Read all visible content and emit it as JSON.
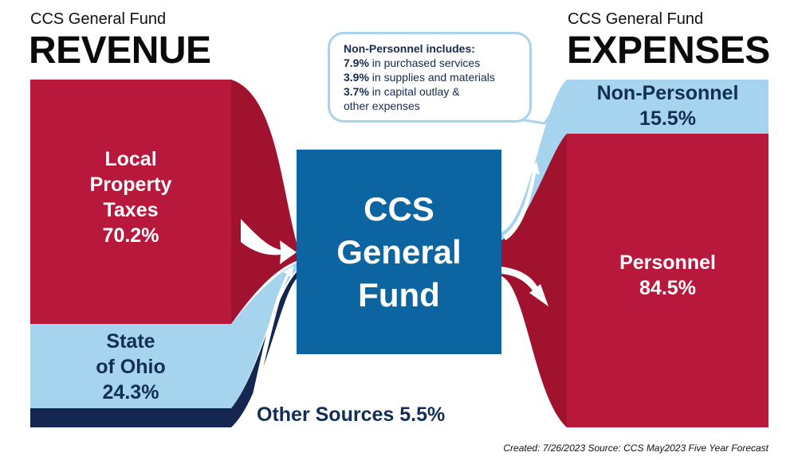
{
  "revenue_header": {
    "small": "CCS General Fund",
    "big": "REVENUE"
  },
  "expenses_header": {
    "small": "CCS General Fund",
    "big": "EXPENSES"
  },
  "revenue": [
    {
      "lines": [
        "Local",
        "Property",
        "Taxes",
        "70.2%"
      ],
      "percent": 70.2,
      "color": "#b8183b"
    },
    {
      "lines": [
        "State",
        "of Ohio",
        "24.3%"
      ],
      "percent": 24.3,
      "color": "#a6d3ee"
    },
    {
      "label": "Other Sources 5.5%",
      "percent": 5.5,
      "color": "#152651"
    }
  ],
  "center": {
    "lines": [
      "CCS",
      "General",
      "Fund"
    ],
    "color": "#0c64a0"
  },
  "expenses": [
    {
      "lines": [
        "Non-Personnel",
        "15.5%"
      ],
      "percent": 15.5,
      "color": "#a6d3ee"
    },
    {
      "lines": [
        "Personnel",
        "84.5%"
      ],
      "percent": 84.5,
      "color": "#b8183b"
    }
  ],
  "callout": {
    "title": "Non-Personnel includes:",
    "items": [
      {
        "pct": "7.9%",
        "text": " in purchased services"
      },
      {
        "pct": "3.9%",
        "text": " in supplies and materials"
      },
      {
        "pct": "3.7%",
        "text": " in capital outlay &"
      },
      {
        "pct": "",
        "text": "other expenses"
      }
    ]
  },
  "footnote": "Created: 7/26/2023 Source: CCS May2023 Five Year Forecast"
}
